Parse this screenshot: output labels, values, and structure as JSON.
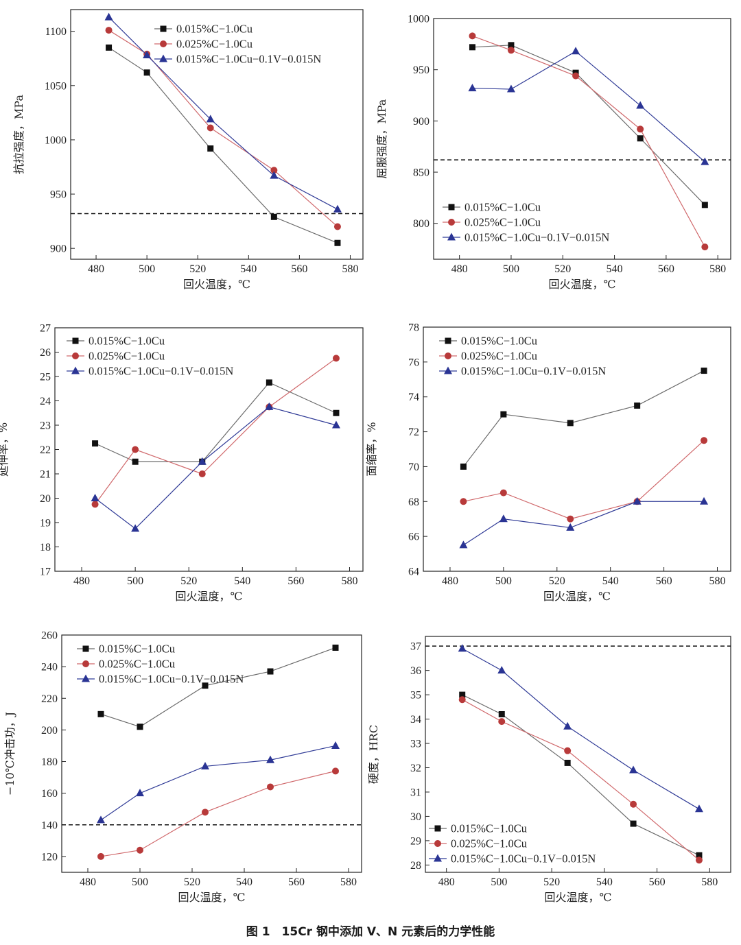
{
  "figure_caption": "图 1　15Cr 钢中添加 V、N 元素后的力学性能",
  "colors": {
    "s1": "#6b6b6b",
    "s2": "#d0696c",
    "s3": "#2f3a96",
    "m1": "#111111",
    "m2": "#b83a3a",
    "m3": "#2a3494",
    "axis": "#222222"
  },
  "chart_data": [
    {
      "type": "line",
      "xlabel": "回火温度，℃",
      "ylabel": "抗拉强度，MPa",
      "xlim": [
        470,
        585
      ],
      "ylim": [
        890,
        1120
      ],
      "xticks": [
        480,
        500,
        520,
        540,
        560,
        580
      ],
      "yticks": [
        900,
        950,
        1000,
        1050,
        1100
      ],
      "legend": "top-right",
      "reference_line": 932,
      "series": [
        {
          "name": "0.015%C−1.0Cu",
          "x": [
            485,
            500,
            525,
            550,
            575
          ],
          "values": [
            1085,
            1062,
            992,
            929,
            905
          ]
        },
        {
          "name": "0.025%C−1.0Cu",
          "x": [
            485,
            500,
            525,
            550,
            575
          ],
          "values": [
            1101,
            1079,
            1011,
            972,
            920
          ]
        },
        {
          "name": "0.015%C−1.0Cu−0.1V−0.015N",
          "x": [
            485,
            500,
            525,
            550,
            575
          ],
          "values": [
            1113,
            1078,
            1019,
            967,
            936
          ]
        }
      ]
    },
    {
      "type": "line",
      "xlabel": "回火温度，℃",
      "ylabel": "屈服强度，MPa",
      "xlim": [
        470,
        585
      ],
      "ylim": [
        765,
        1000
      ],
      "xticks": [
        480,
        500,
        520,
        540,
        560,
        580
      ],
      "yticks": [
        800,
        850,
        900,
        950,
        1000
      ],
      "legend": "bottom-left",
      "reference_line": 862,
      "series": [
        {
          "name": "0.015%C−1.0Cu",
          "x": [
            485,
            500,
            525,
            550,
            575
          ],
          "values": [
            972,
            974,
            947,
            883,
            818
          ]
        },
        {
          "name": "0.025%C−1.0Cu",
          "x": [
            485,
            500,
            525,
            550,
            575
          ],
          "values": [
            983,
            969,
            944,
            892,
            777
          ]
        },
        {
          "name": "0.015%C−1.0Cu−0.1V−0.015N",
          "x": [
            485,
            500,
            525,
            550,
            575
          ],
          "values": [
            932,
            931,
            968,
            915,
            860
          ]
        }
      ]
    },
    {
      "type": "line",
      "xlabel": "回火温度，℃",
      "ylabel": "延伸率，%",
      "xlim": [
        470,
        585
      ],
      "ylim": [
        17,
        27
      ],
      "xticks": [
        480,
        500,
        520,
        540,
        560,
        580
      ],
      "yticks": [
        17,
        18,
        19,
        20,
        21,
        22,
        23,
        24,
        25,
        26,
        27
      ],
      "legend": "top-left",
      "series": [
        {
          "name": "0.015%C−1.0Cu",
          "x": [
            485,
            500,
            525,
            550,
            575
          ],
          "values": [
            22.25,
            21.5,
            21.5,
            24.75,
            23.5
          ]
        },
        {
          "name": "0.025%C−1.0Cu",
          "x": [
            485,
            500,
            525,
            550,
            575
          ],
          "values": [
            19.75,
            22.0,
            21.0,
            23.75,
            25.75
          ]
        },
        {
          "name": "0.015%C−1.0Cu−0.1V−0.015N",
          "x": [
            485,
            500,
            525,
            550,
            575
          ],
          "values": [
            20.0,
            18.75,
            21.5,
            23.75,
            23.0
          ]
        }
      ]
    },
    {
      "type": "line",
      "xlabel": "回火温度，℃",
      "ylabel": "面缩率，%",
      "xlim": [
        470,
        585
      ],
      "ylim": [
        64,
        78
      ],
      "xticks": [
        480,
        500,
        520,
        540,
        560,
        580
      ],
      "yticks": [
        64,
        66,
        68,
        70,
        72,
        74,
        76,
        78
      ],
      "legend": "top-left",
      "series": [
        {
          "name": "0.015%C−1.0Cu",
          "x": [
            485,
            500,
            525,
            550,
            575
          ],
          "values": [
            70.0,
            73.0,
            72.5,
            73.5,
            75.5
          ]
        },
        {
          "name": "0.025%C−1.0Cu",
          "x": [
            485,
            500,
            525,
            550,
            575
          ],
          "values": [
            68.0,
            68.5,
            67.0,
            68.0,
            71.5
          ]
        },
        {
          "name": "0.015%C−1.0Cu−0.1V−0.015N",
          "x": [
            485,
            500,
            525,
            550,
            575
          ],
          "values": [
            65.5,
            67.0,
            66.5,
            68.0,
            68.0
          ]
        }
      ]
    },
    {
      "type": "line",
      "xlabel": "回火温度，℃",
      "ylabel": "−10℃冲击功，J",
      "xlim": [
        470,
        585
      ],
      "ylim": [
        110,
        260
      ],
      "xticks": [
        480,
        500,
        520,
        540,
        560,
        580
      ],
      "yticks": [
        120,
        140,
        160,
        180,
        200,
        220,
        240,
        260
      ],
      "legend": "top-left",
      "reference_line": 140,
      "series": [
        {
          "name": "0.015%C−1.0Cu",
          "x": [
            485,
            500,
            525,
            550,
            575
          ],
          "values": [
            210,
            202,
            228,
            237,
            252
          ]
        },
        {
          "name": "0.025%C−1.0Cu",
          "x": [
            485,
            500,
            525,
            550,
            575
          ],
          "values": [
            120,
            124,
            148,
            164,
            174
          ]
        },
        {
          "name": "0.015%C−1.0Cu−0.1V−0.015N",
          "x": [
            485,
            500,
            525,
            550,
            575
          ],
          "values": [
            143,
            160,
            177,
            181,
            190
          ]
        }
      ]
    },
    {
      "type": "line",
      "xlabel": "回火温度，℃",
      "ylabel": "硬度，HRC",
      "xlim": [
        472,
        588
      ],
      "ylim": [
        27.7,
        37.4
      ],
      "xticks": [
        480,
        500,
        520,
        540,
        560,
        580
      ],
      "yticks": [
        28,
        29,
        30,
        31,
        32,
        33,
        34,
        35,
        36,
        37
      ],
      "legend": "bottom-left",
      "reference_line": 37,
      "series": [
        {
          "name": "0.015%C−1.0Cu",
          "x": [
            486,
            501,
            526,
            551,
            576
          ],
          "values": [
            35.0,
            34.2,
            32.2,
            29.7,
            28.4
          ]
        },
        {
          "name": "0.025%C−1.0Cu",
          "x": [
            486,
            501,
            526,
            551,
            576
          ],
          "values": [
            34.8,
            33.9,
            32.7,
            30.5,
            28.2
          ]
        },
        {
          "name": "0.015%C−1.0Cu−0.1V−0.015N",
          "x": [
            486,
            501,
            526,
            551,
            576
          ],
          "values": [
            36.9,
            36.0,
            33.7,
            31.9,
            30.3
          ]
        }
      ]
    }
  ]
}
